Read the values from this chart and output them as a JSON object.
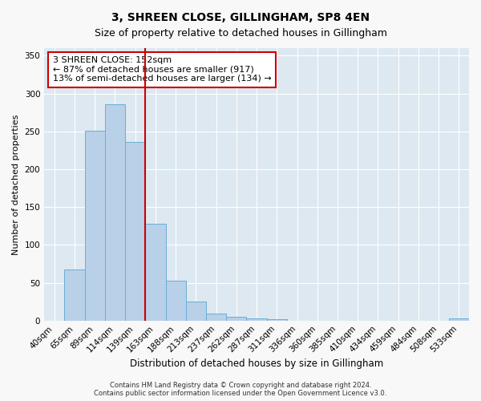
{
  "title": "3, SHREEN CLOSE, GILLINGHAM, SP8 4EN",
  "subtitle": "Size of property relative to detached houses in Gillingham",
  "xlabel": "Distribution of detached houses by size in Gillingham",
  "ylabel": "Number of detached properties",
  "bin_labels": [
    "40sqm",
    "65sqm",
    "89sqm",
    "114sqm",
    "139sqm",
    "163sqm",
    "188sqm",
    "213sqm",
    "237sqm",
    "262sqm",
    "287sqm",
    "311sqm",
    "336sqm",
    "360sqm",
    "385sqm",
    "410sqm",
    "434sqm",
    "459sqm",
    "484sqm",
    "508sqm",
    "533sqm"
  ],
  "bar_values": [
    0,
    68,
    251,
    286,
    236,
    128,
    53,
    25,
    9,
    5,
    3,
    2,
    0,
    0,
    0,
    0,
    0,
    0,
    0,
    0,
    3
  ],
  "bar_color": "#b8d0e8",
  "bar_edge_color": "#6aaed6",
  "vline_x_index": 5,
  "vline_color": "#cc0000",
  "annotation_line1": "3 SHREEN CLOSE: 152sqm",
  "annotation_line2": "← 87% of detached houses are smaller (917)",
  "annotation_line3": "13% of semi-detached houses are larger (134) →",
  "annotation_box_color": "#ffffff",
  "annotation_box_edge": "#cc0000",
  "ylim": [
    0,
    360
  ],
  "yticks": [
    0,
    50,
    100,
    150,
    200,
    250,
    300,
    350
  ],
  "fig_bg_color": "#f8f8f8",
  "plot_bg_color": "#dde8f0",
  "footer_line1": "Contains HM Land Registry data © Crown copyright and database right 2024.",
  "footer_line2": "Contains public sector information licensed under the Open Government Licence v3.0.",
  "title_fontsize": 10,
  "subtitle_fontsize": 9,
  "xlabel_fontsize": 8.5,
  "ylabel_fontsize": 8,
  "tick_fontsize": 7.5,
  "annotation_fontsize": 8,
  "footer_fontsize": 6
}
